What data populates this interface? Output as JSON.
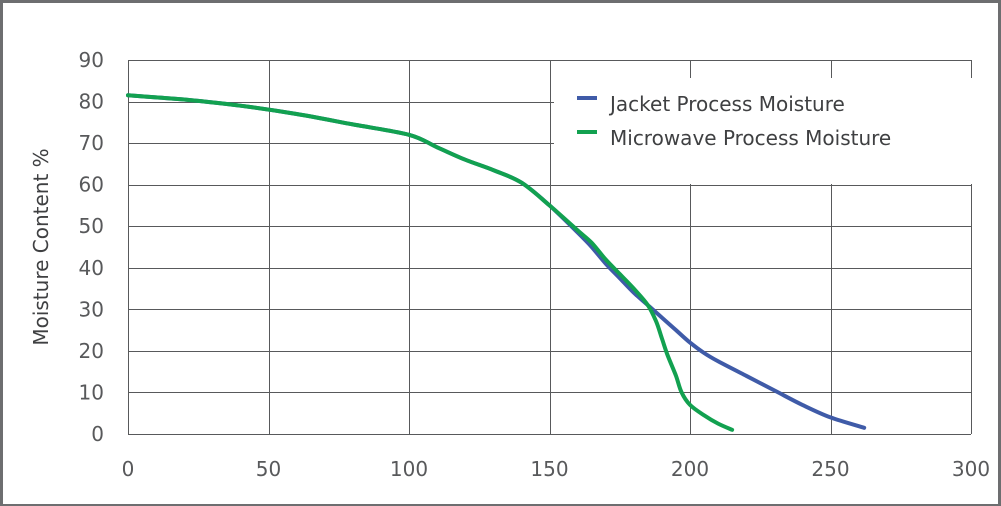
{
  "chart_data": {
    "type": "line",
    "title": "",
    "xlabel": "",
    "ylabel": "Moisture Content %",
    "xlim": [
      0,
      300
    ],
    "ylim": [
      0,
      90
    ],
    "x_ticks": [
      0,
      50,
      100,
      150,
      200,
      250,
      300
    ],
    "y_ticks": [
      0,
      10,
      20,
      30,
      40,
      50,
      60,
      70,
      80,
      90
    ],
    "grid": "on",
    "legend": "top-right",
    "series": [
      {
        "name": "Jacket Process Moisture",
        "color": "#3f5ba8",
        "x": [
          0,
          10,
          20,
          40,
          60,
          80,
          100,
          110,
          120,
          130,
          140,
          150,
          160,
          165,
          170,
          175,
          180,
          185,
          190,
          195,
          200,
          205,
          210,
          220,
          230,
          240,
          250,
          262
        ],
        "y": [
          81.5,
          81,
          80.5,
          79,
          77,
          74.5,
          72,
          69,
          66,
          63.5,
          60.5,
          55,
          48.5,
          45,
          41,
          37.5,
          34,
          31,
          28,
          25,
          22,
          19.5,
          17.5,
          14,
          10.5,
          7,
          4,
          1.5
        ]
      },
      {
        "name": "Microwave Process Moisture",
        "color": "#12a150",
        "x": [
          0,
          10,
          20,
          40,
          60,
          80,
          100,
          110,
          120,
          130,
          140,
          150,
          160,
          165,
          170,
          175,
          180,
          185,
          188,
          190,
          192,
          195,
          197,
          200,
          205,
          210,
          215
        ],
        "y": [
          81.5,
          81,
          80.5,
          79,
          77,
          74.5,
          72,
          69,
          66,
          63.5,
          60.5,
          55,
          49,
          46,
          42,
          38.5,
          35,
          31,
          27,
          23,
          19,
          14,
          10,
          7,
          4.5,
          2.5,
          1
        ]
      }
    ]
  }
}
